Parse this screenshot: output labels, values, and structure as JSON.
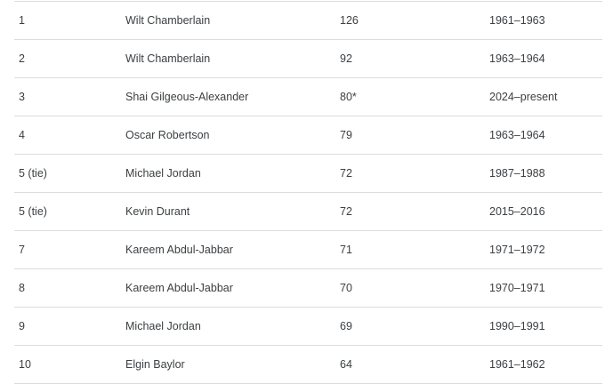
{
  "table": {
    "rows": [
      [
        "1",
        "Wilt Chamberlain",
        "126",
        "1961–1963"
      ],
      [
        "2",
        "Wilt Chamberlain",
        "92",
        "1963–1964"
      ],
      [
        "3",
        "Shai Gilgeous-Alexander",
        "80*",
        "2024–present"
      ],
      [
        "4",
        "Oscar Robertson",
        "79",
        "1963–1964"
      ],
      [
        "5 (tie)",
        "Michael Jordan",
        "72",
        "1987–1988"
      ],
      [
        "5 (tie)",
        "Kevin Durant",
        "72",
        "2015–2016"
      ],
      [
        "7",
        "Kareem Abdul-Jabbar",
        "71",
        "1971–1972"
      ],
      [
        "8",
        "Kareem Abdul-Jabbar",
        "70",
        "1970–1971"
      ],
      [
        "9",
        "Michael Jordan",
        "69",
        "1990–1991"
      ],
      [
        "10",
        "Elgin Baylor",
        "64",
        "1961–1962"
      ]
    ]
  }
}
